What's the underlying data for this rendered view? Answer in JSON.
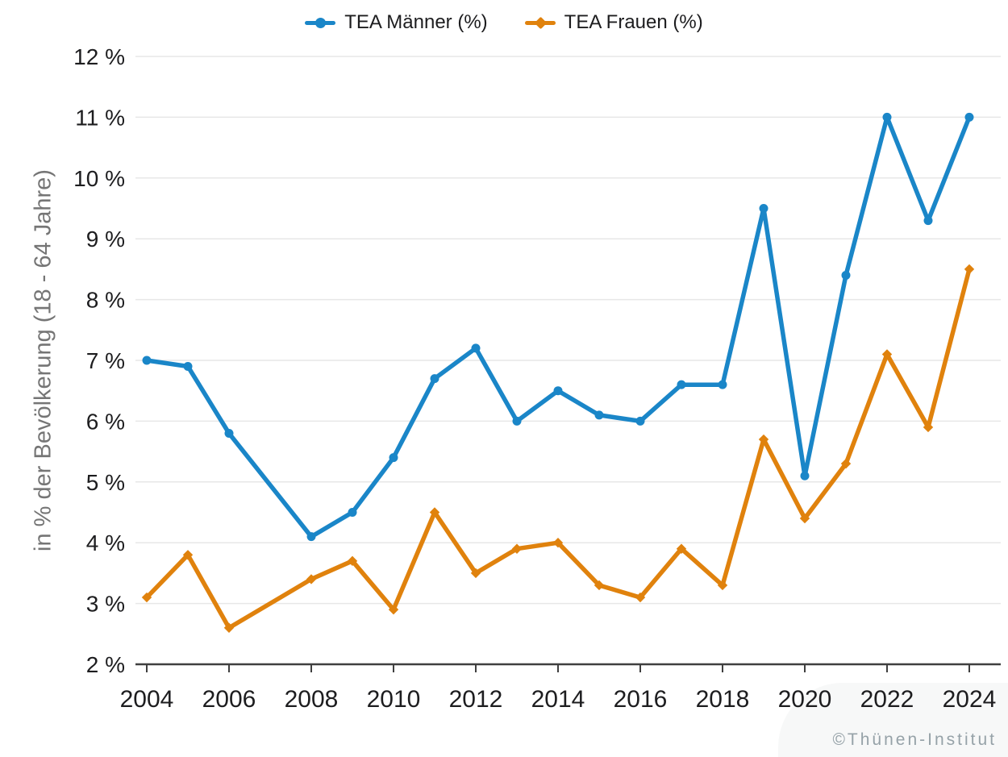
{
  "copyright": "©Thünen-Institut",
  "y_axis_title": "in % der Bevölkerung (18 - 64 Jahre)",
  "colors": {
    "maenner": "#1a86c8",
    "frauen": "#e0820d",
    "grid": "#e7e7e7",
    "axis": "#3f3f3f",
    "tick_text": "#1d1d1f",
    "axis_title_text": "#757575",
    "copyright_text": "#96a2a8"
  },
  "chart_data": {
    "type": "line",
    "x": [
      2004,
      2005,
      2006,
      2007,
      2008,
      2009,
      2010,
      2011,
      2012,
      2013,
      2014,
      2015,
      2016,
      2017,
      2018,
      2019,
      2020,
      2021,
      2022,
      2023,
      2024
    ],
    "series": [
      {
        "name": "TEA Männer (%)",
        "color": "#1a86c8",
        "marker": "circle",
        "values": [
          7.0,
          6.9,
          5.8,
          null,
          4.1,
          4.5,
          5.4,
          6.7,
          7.2,
          6.0,
          6.5,
          6.1,
          6.0,
          6.6,
          6.6,
          9.5,
          5.1,
          8.4,
          11.0,
          9.3,
          11.0
        ]
      },
      {
        "name": "TEA Frauen (%)",
        "color": "#e0820d",
        "marker": "diamond",
        "values": [
          3.1,
          3.8,
          2.6,
          null,
          3.4,
          3.7,
          2.9,
          4.5,
          3.5,
          3.9,
          4.0,
          3.3,
          3.1,
          3.9,
          3.3,
          5.7,
          4.4,
          5.3,
          7.1,
          5.9,
          8.5
        ]
      }
    ],
    "title": "",
    "xlabel": "",
    "ylabel": "in % der Bevölkerung (18 - 64 Jahre)",
    "ylim": [
      2,
      12
    ],
    "y_ticks": [
      {
        "value": 12,
        "label": "12 %"
      },
      {
        "value": 11,
        "label": "11 %"
      },
      {
        "value": 10,
        "label": "10 %"
      },
      {
        "value": 9,
        "label": "9 %"
      },
      {
        "value": 8,
        "label": "8 %"
      },
      {
        "value": 7,
        "label": "7 %"
      },
      {
        "value": 6,
        "label": "6 %"
      },
      {
        "value": 5,
        "label": "5 %"
      },
      {
        "value": 4,
        "label": "4 %"
      },
      {
        "value": 3,
        "label": "3 %"
      },
      {
        "value": 2,
        "label": "2 %"
      }
    ],
    "x_ticks": [
      2004,
      2006,
      2008,
      2010,
      2012,
      2014,
      2016,
      2018,
      2020,
      2022,
      2024
    ],
    "grid": true,
    "legend_position": "top"
  }
}
